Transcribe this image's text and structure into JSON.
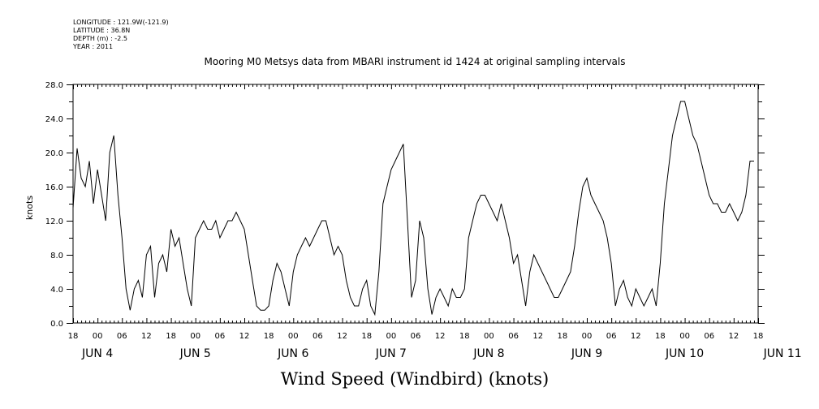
{
  "meta_lines": [
    "LONGITUDE : 121.9W(-121.9)",
    "LATITUDE : 36.8N",
    "DEPTH (m) : -2.5",
    "YEAR : 2011"
  ],
  "chart_data": {
    "type": "line",
    "title": "Mooring M0 Metsys data from MBARI instrument id 1424 at original sampling intervals",
    "xlabel": "Wind Speed (Windbird) (knots)",
    "ylabel": "knots",
    "ylim": [
      0,
      28
    ],
    "yticks": [
      "0.0",
      "4.0",
      "8.0",
      "12.0",
      "16.0",
      "20.0",
      "24.0",
      "28.0"
    ],
    "xrange_hours": [
      0,
      168
    ],
    "x_unit": "hours since JUN 3 18:00, 2011",
    "hour_ticks": [
      "18",
      "00",
      "06",
      "12",
      "18",
      "00",
      "06",
      "12",
      "18",
      "00",
      "06",
      "12",
      "18",
      "00",
      "06",
      "12",
      "18",
      "00",
      "06",
      "12",
      "18",
      "00",
      "06",
      "12",
      "18",
      "00",
      "06",
      "12",
      "18"
    ],
    "day_labels": [
      {
        "label": "JUN  4",
        "hour": 6
      },
      {
        "label": "JUN  5",
        "hour": 30
      },
      {
        "label": "JUN  6",
        "hour": 54
      },
      {
        "label": "JUN  7",
        "hour": 78
      },
      {
        "label": "JUN  8",
        "hour": 102
      },
      {
        "label": "JUN  9",
        "hour": 126
      },
      {
        "label": "JUN 10",
        "hour": 150
      },
      {
        "label": "JUN 11",
        "hour": 174
      }
    ],
    "grid": false,
    "series": [
      {
        "values_x_hours": [
          0,
          1,
          2,
          3,
          4,
          5,
          6,
          7,
          8,
          9,
          10,
          11,
          12,
          13,
          14,
          15,
          16,
          17,
          18,
          19,
          20,
          21,
          22,
          23,
          24,
          25,
          26,
          27,
          28,
          29,
          30,
          31,
          32,
          33,
          34,
          35,
          36,
          37,
          38,
          39,
          40,
          41,
          42,
          43,
          44,
          45,
          46,
          47,
          48,
          49,
          50,
          51,
          52,
          53,
          54,
          55,
          56,
          57,
          58,
          59,
          60,
          61,
          62,
          63,
          64,
          65,
          66,
          67,
          68,
          69,
          70,
          71,
          72,
          73,
          74,
          75,
          76,
          77,
          78,
          79,
          80,
          81,
          82,
          83,
          84,
          85,
          86,
          87,
          88,
          89,
          90,
          91,
          92,
          93,
          94,
          95,
          96,
          97,
          98,
          99,
          100,
          101,
          102,
          103,
          104,
          105,
          106,
          107,
          108,
          109,
          110,
          111,
          112,
          113,
          114,
          115,
          116,
          117,
          118,
          119,
          120,
          121,
          122,
          123,
          124,
          125,
          126,
          127,
          128,
          129,
          130,
          131,
          132,
          133,
          134,
          135,
          136,
          137,
          138,
          139,
          140,
          141,
          142,
          143,
          144,
          145,
          146,
          147,
          148,
          149,
          150,
          151,
          152,
          153,
          154,
          155,
          156,
          157,
          158,
          159,
          160,
          161,
          162,
          163,
          164,
          165,
          166,
          167,
          168
        ],
        "values_knots": [
          13.5,
          20.5,
          17,
          16,
          19,
          14,
          18,
          15,
          12,
          20,
          22,
          15,
          10,
          4,
          1.5,
          4,
          5,
          3,
          8,
          9,
          3,
          7,
          8,
          6,
          11,
          9,
          10,
          7,
          4,
          2,
          10,
          11,
          12,
          11,
          11,
          12,
          10,
          11,
          12,
          12,
          13,
          12,
          11,
          8,
          5,
          2,
          1.5,
          1.5,
          2,
          5,
          7,
          6,
          4,
          2,
          6,
          8,
          9,
          10,
          9,
          10,
          11,
          12,
          12,
          10,
          8,
          9,
          8,
          5,
          3,
          2,
          2,
          4,
          5,
          2,
          1,
          6,
          14,
          16,
          18,
          19,
          20,
          21,
          12,
          3,
          5,
          12,
          10,
          4,
          1,
          3,
          4,
          3,
          2,
          4,
          3,
          3,
          4,
          10,
          12,
          14,
          15,
          15,
          14,
          13,
          12,
          14,
          12,
          10,
          7,
          8,
          5,
          2,
          6,
          8,
          7,
          6,
          5,
          4,
          3,
          3,
          4,
          5,
          6,
          9,
          13,
          16,
          17,
          15,
          14,
          13,
          12,
          10,
          7,
          2,
          4,
          5,
          3,
          2,
          4,
          3,
          2,
          3,
          4,
          2,
          7,
          14,
          18,
          22,
          24,
          26,
          26,
          24,
          22,
          21,
          19,
          17,
          15,
          14,
          14,
          13,
          13,
          14,
          13,
          12,
          13,
          15,
          19,
          19
        ]
      }
    ]
  }
}
